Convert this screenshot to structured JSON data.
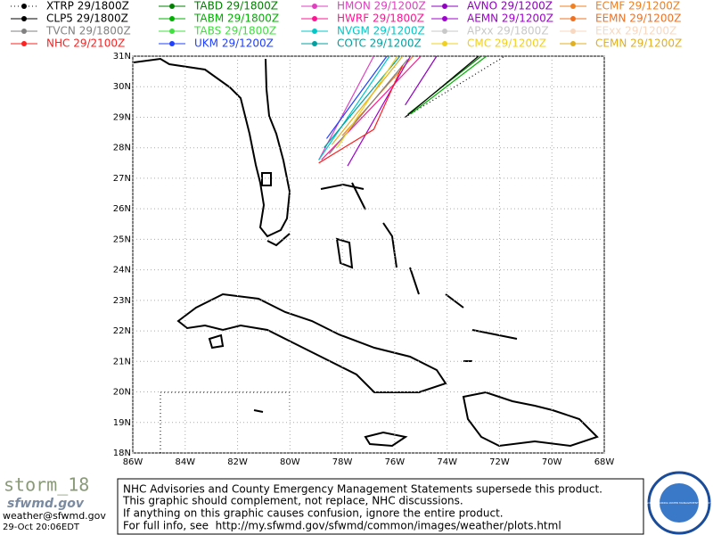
{
  "map": {
    "xlim": [
      -86,
      -68
    ],
    "ylim": [
      18,
      31
    ],
    "xticks": [
      {
        "value": -86,
        "label": "86W"
      },
      {
        "value": -84,
        "label": "84W"
      },
      {
        "value": -82,
        "label": "82W"
      },
      {
        "value": -80,
        "label": "80W"
      },
      {
        "value": -78,
        "label": "78W"
      },
      {
        "value": -76,
        "label": "76W"
      },
      {
        "value": -74,
        "label": "74W"
      },
      {
        "value": -72,
        "label": "72W"
      },
      {
        "value": -70,
        "label": "70W"
      },
      {
        "value": -68,
        "label": "68W"
      }
    ],
    "yticks": [
      {
        "value": 18,
        "label": "18N"
      },
      {
        "value": 19,
        "label": "19N"
      },
      {
        "value": 20,
        "label": "20N"
      },
      {
        "value": 21,
        "label": "21N"
      },
      {
        "value": 22,
        "label": "22N"
      },
      {
        "value": 23,
        "label": "23N"
      },
      {
        "value": 24,
        "label": "24N"
      },
      {
        "value": 25,
        "label": "25N"
      },
      {
        "value": 26,
        "label": "26N"
      },
      {
        "value": 27,
        "label": "27N"
      },
      {
        "value": 28,
        "label": "28N"
      },
      {
        "value": 29,
        "label": "29N"
      },
      {
        "value": 30,
        "label": "30N"
      },
      {
        "value": 31,
        "label": "31N"
      }
    ],
    "legend": [
      {
        "label": "XTRP 29/1800Z",
        "color": "#000000",
        "dotted": true,
        "lon": [
          -75.6,
          -71.8
        ],
        "lat": [
          29.0,
          31.0
        ]
      },
      {
        "label": "TABD 29/1800Z",
        "color": "#008000",
        "lon": [
          -75.5,
          -72.7
        ],
        "lat": [
          29.1,
          31.0
        ]
      },
      {
        "label": "HMON 29/1200Z",
        "color": "#e040c0",
        "lon": [
          -78.9,
          -76.8
        ],
        "lat": [
          27.6,
          31.0
        ]
      },
      {
        "label": "AVNO 29/1200Z",
        "color": "#9000c0",
        "lon": [
          -75.6,
          -74.4
        ],
        "lat": [
          29.4,
          31.0
        ]
      },
      {
        "label": "ECMF 29/1200Z",
        "color": "#f08020",
        "lon": [
          -78.0,
          -75.3
        ],
        "lat": [
          28.4,
          31.0
        ]
      },
      {
        "label": "CLP5 29/1800Z",
        "color": "#000000",
        "lon": [
          -75.6,
          -72.8
        ],
        "lat": [
          29.0,
          31.0
        ]
      },
      {
        "label": "TABM 29/1800Z",
        "color": "#00b000",
        "lon": [
          -75.4,
          -72.5
        ],
        "lat": [
          29.1,
          31.0
        ]
      },
      {
        "label": "HWRF 29/1800Z",
        "color": "#ff1493",
        "lon": [
          -78.8,
          -75.0
        ],
        "lat": [
          27.6,
          31.0
        ]
      },
      {
        "label": "AEMN 29/1200Z",
        "color": "#a000d0",
        "lon": [
          -77.8,
          -75.4
        ],
        "lat": [
          27.4,
          31.0
        ]
      },
      {
        "label": "EEMN 29/1200Z",
        "color": "#f07020"
      },
      {
        "label": "TVCN 29/1800Z",
        "color": "#808080",
        "lon": [
          -78.5,
          -75.5
        ],
        "lat": [
          27.8,
          30.9
        ]
      },
      {
        "label": "TABS 29/1800Z",
        "color": "#40e040"
      },
      {
        "label": "NVGM 29/1200Z",
        "color": "#00c8c8",
        "lon": [
          -78.9,
          -76.2
        ],
        "lat": [
          27.6,
          31.0
        ]
      },
      {
        "label": "APxx 29/1800Z",
        "color": "#c8c8c8"
      },
      {
        "label": "EExx 29/1200Z",
        "color": "#f8d8c0"
      },
      {
        "label": "NHC 29/2100Z",
        "color": "#ff2020",
        "lon": [
          -78.9,
          -76.8,
          -75.7
        ],
        "lat": [
          27.5,
          28.6,
          30.7
        ]
      },
      {
        "label": "UKM 29/1200Z",
        "color": "#2040ff",
        "lon": [
          -78.6,
          -76.3
        ],
        "lat": [
          28.3,
          31.0
        ]
      },
      {
        "label": "COTC 29/1200Z",
        "color": "#00a0a0",
        "lon": [
          -78.7,
          -75.8
        ],
        "lat": [
          28.0,
          31.0
        ]
      },
      {
        "label": "CMC 29/1200Z",
        "color": "#f0d020",
        "lon": [
          -78.2,
          -75.9
        ],
        "lat": [
          28.0,
          31.0
        ]
      },
      {
        "label": "CEMN 29/1200Z",
        "color": "#e0b020",
        "lon": [
          -78.4,
          -75.7
        ],
        "lat": [
          28.1,
          31.0
        ]
      }
    ]
  },
  "footer": {
    "brand": "storm_18",
    "site": "sfwmd.gov",
    "email": "weather@sfwmd.gov",
    "timestamp": "29-Oct 20:06EDT",
    "disclaimer": [
      "NHC Advisories and County Emergency Management Statements supersede this product.",
      "This graphic should complement, not replace, NHC discussions.",
      "If anything on this graphic causes confusion, ignore the entire product.",
      "For full info, see  http://my.sfwmd.gov/sfwmd/common/images/weather/plots.html"
    ],
    "logo": "SOUTH FLORIDA WATER MANAGEMENT DISTRICT"
  }
}
